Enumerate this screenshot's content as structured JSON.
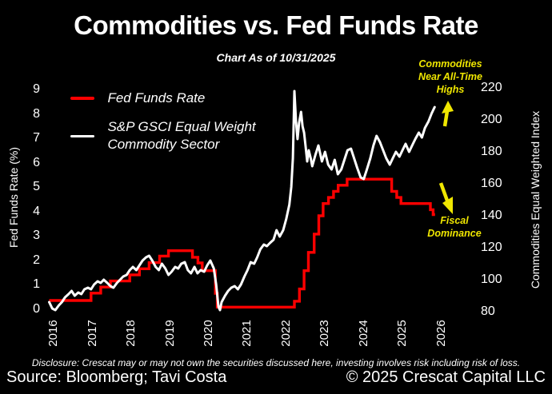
{
  "title": "Commodities vs. Fed Funds Rate",
  "subtitle": "Chart As of 10/31/2025",
  "annotations": {
    "top_right": "Commodities Near All-Time Highs",
    "top_right_lines": [
      "Commodities",
      "Near All-Time",
      "Highs"
    ],
    "bottom_right": "Fiscal Dominance",
    "bottom_right_lines": [
      "Fiscal",
      "Dominance"
    ]
  },
  "footer": {
    "disclosure": "Disclosure: Crescat may or may not own the securities discussed here, investing involves risk including risk of loss.",
    "source": "Source: Bloomberg; Tavi Costa",
    "copyright": "© 2025 Crescat Capital LLC"
  },
  "colors": {
    "background": "#000000",
    "text": "#ffffff",
    "fed_funds_line": "#ff0000",
    "commodity_line": "#ffffff",
    "annotation": "#efe600"
  },
  "chart_data": {
    "type": "line",
    "title": "Commodities vs. Fed Funds Rate",
    "subtitle": "Chart As of 10/31/2025",
    "grid": false,
    "legend_position": "upper-left",
    "left_axis": {
      "label": "Fed Funds Rate (%)",
      "ticks": [
        9,
        8,
        7,
        6,
        5,
        4,
        3,
        2,
        1,
        0
      ],
      "range": [
        0,
        9
      ]
    },
    "right_axis": {
      "label": "Commodities Equal Weighted Index",
      "ticks": [
        220,
        200,
        180,
        160,
        140,
        120,
        100,
        80
      ],
      "range": [
        80,
        220
      ]
    },
    "x_axis": {
      "ticks": [
        2016,
        2017,
        2018,
        2019,
        2020,
        2021,
        2022,
        2023,
        2024,
        2025,
        2026
      ],
      "range": [
        2015.85,
        2027.0
      ]
    },
    "legend": [
      {
        "label": "Fed Funds Rate",
        "color": "#ff0000"
      },
      {
        "label": "S&P GSCI Equal Weight Commodity Sector",
        "label_lines": [
          "S&P GSCI Equal Weight",
          "Commodity Sector"
        ],
        "color": "#ffffff"
      }
    ],
    "series": [
      {
        "name": "Fed Funds Rate",
        "axis": "left",
        "style": "step",
        "color": "#ff0000",
        "end_time": 2025.84,
        "points": [
          [
            2015.88,
            0.36
          ],
          [
            2016.96,
            0.66
          ],
          [
            2017.21,
            0.91
          ],
          [
            2017.46,
            1.16
          ],
          [
            2017.96,
            1.41
          ],
          [
            2018.21,
            1.66
          ],
          [
            2018.46,
            1.91
          ],
          [
            2018.73,
            2.18
          ],
          [
            2018.96,
            2.4
          ],
          [
            2019.58,
            2.13
          ],
          [
            2019.72,
            1.9
          ],
          [
            2019.83,
            1.58
          ],
          [
            2020.17,
            0.65
          ],
          [
            2020.22,
            0.09
          ],
          [
            2022.21,
            0.33
          ],
          [
            2022.34,
            0.83
          ],
          [
            2022.46,
            1.58
          ],
          [
            2022.57,
            2.33
          ],
          [
            2022.72,
            3.08
          ],
          [
            2022.84,
            3.83
          ],
          [
            2022.95,
            4.33
          ],
          [
            2023.09,
            4.58
          ],
          [
            2023.22,
            4.83
          ],
          [
            2023.34,
            5.08
          ],
          [
            2023.57,
            5.33
          ],
          [
            2024.72,
            4.83
          ],
          [
            2024.85,
            4.58
          ],
          [
            2024.96,
            4.33
          ],
          [
            2025.72,
            4.08
          ],
          [
            2025.79,
            3.88
          ]
        ]
      },
      {
        "name": "S&P GSCI Equal Weight Commodity Sector",
        "axis": "right",
        "style": "line",
        "color": "#ffffff",
        "points": [
          [
            2015.88,
            86
          ],
          [
            2015.96,
            82
          ],
          [
            2016.04,
            81
          ],
          [
            2016.13,
            84
          ],
          [
            2016.21,
            86
          ],
          [
            2016.29,
            89
          ],
          [
            2016.38,
            91
          ],
          [
            2016.46,
            93
          ],
          [
            2016.54,
            90
          ],
          [
            2016.63,
            92
          ],
          [
            2016.71,
            91
          ],
          [
            2016.79,
            94
          ],
          [
            2016.88,
            95
          ],
          [
            2016.96,
            94
          ],
          [
            2017.04,
            97
          ],
          [
            2017.13,
            99
          ],
          [
            2017.21,
            98
          ],
          [
            2017.29,
            100
          ],
          [
            2017.38,
            98
          ],
          [
            2017.46,
            96
          ],
          [
            2017.54,
            95
          ],
          [
            2017.63,
            98
          ],
          [
            2017.71,
            100
          ],
          [
            2017.79,
            102
          ],
          [
            2017.88,
            103
          ],
          [
            2017.96,
            106
          ],
          [
            2018.04,
            108
          ],
          [
            2018.13,
            106
          ],
          [
            2018.21,
            109
          ],
          [
            2018.29,
            112
          ],
          [
            2018.38,
            114
          ],
          [
            2018.46,
            115
          ],
          [
            2018.54,
            112
          ],
          [
            2018.63,
            108
          ],
          [
            2018.71,
            106
          ],
          [
            2018.79,
            110
          ],
          [
            2018.88,
            107
          ],
          [
            2018.96,
            103
          ],
          [
            2019.04,
            105
          ],
          [
            2019.13,
            108
          ],
          [
            2019.21,
            107
          ],
          [
            2019.29,
            110
          ],
          [
            2019.38,
            111
          ],
          [
            2019.46,
            106
          ],
          [
            2019.54,
            104
          ],
          [
            2019.63,
            108
          ],
          [
            2019.71,
            104
          ],
          [
            2019.79,
            106
          ],
          [
            2019.88,
            105
          ],
          [
            2019.96,
            109
          ],
          [
            2020.04,
            112
          ],
          [
            2020.13,
            107
          ],
          [
            2020.19,
            97
          ],
          [
            2020.25,
            83
          ],
          [
            2020.29,
            81
          ],
          [
            2020.33,
            86
          ],
          [
            2020.42,
            90
          ],
          [
            2020.5,
            93
          ],
          [
            2020.58,
            95
          ],
          [
            2020.67,
            96
          ],
          [
            2020.75,
            94
          ],
          [
            2020.83,
            97
          ],
          [
            2020.92,
            102
          ],
          [
            2021.0,
            106
          ],
          [
            2021.08,
            111
          ],
          [
            2021.17,
            110
          ],
          [
            2021.25,
            114
          ],
          [
            2021.33,
            119
          ],
          [
            2021.42,
            122
          ],
          [
            2021.5,
            121
          ],
          [
            2021.58,
            123
          ],
          [
            2021.67,
            125
          ],
          [
            2021.75,
            131
          ],
          [
            2021.83,
            127
          ],
          [
            2021.92,
            131
          ],
          [
            2022.0,
            138
          ],
          [
            2022.08,
            147
          ],
          [
            2022.13,
            158
          ],
          [
            2022.17,
            176
          ],
          [
            2022.21,
            218
          ],
          [
            2022.25,
            199
          ],
          [
            2022.29,
            188
          ],
          [
            2022.33,
            198
          ],
          [
            2022.38,
            205
          ],
          [
            2022.42,
            196
          ],
          [
            2022.46,
            192
          ],
          [
            2022.5,
            183
          ],
          [
            2022.54,
            174
          ],
          [
            2022.58,
            181
          ],
          [
            2022.63,
            176
          ],
          [
            2022.67,
            171
          ],
          [
            2022.75,
            178
          ],
          [
            2022.83,
            184
          ],
          [
            2022.92,
            174
          ],
          [
            2023.0,
            180
          ],
          [
            2023.08,
            172
          ],
          [
            2023.17,
            169
          ],
          [
            2023.25,
            175
          ],
          [
            2023.33,
            166
          ],
          [
            2023.42,
            169
          ],
          [
            2023.5,
            175
          ],
          [
            2023.58,
            181
          ],
          [
            2023.67,
            182
          ],
          [
            2023.75,
            176
          ],
          [
            2023.83,
            170
          ],
          [
            2023.92,
            164
          ],
          [
            2024.0,
            163
          ],
          [
            2024.08,
            169
          ],
          [
            2024.17,
            176
          ],
          [
            2024.25,
            184
          ],
          [
            2024.33,
            190
          ],
          [
            2024.42,
            186
          ],
          [
            2024.5,
            181
          ],
          [
            2024.58,
            176
          ],
          [
            2024.67,
            172
          ],
          [
            2024.75,
            176
          ],
          [
            2024.83,
            180
          ],
          [
            2024.92,
            177
          ],
          [
            2025.0,
            181
          ],
          [
            2025.08,
            185
          ],
          [
            2025.17,
            180
          ],
          [
            2025.25,
            184
          ],
          [
            2025.33,
            188
          ],
          [
            2025.42,
            192
          ],
          [
            2025.5,
            189
          ],
          [
            2025.58,
            195
          ],
          [
            2025.67,
            199
          ],
          [
            2025.75,
            204
          ],
          [
            2025.83,
            208
          ]
        ]
      }
    ]
  }
}
